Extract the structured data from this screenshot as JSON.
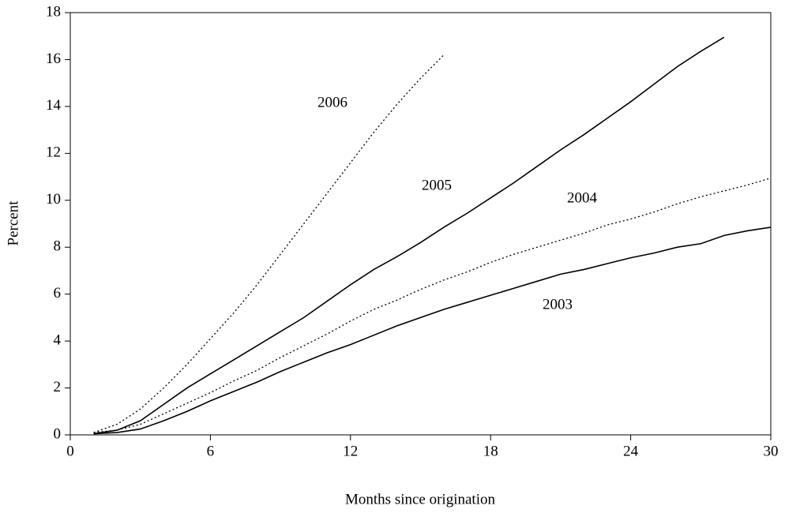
{
  "chart_data": {
    "type": "line",
    "xlabel": "Months since origination",
    "ylabel": "Percent",
    "x": [
      1,
      2,
      3,
      4,
      5,
      6,
      7,
      8,
      9,
      10,
      11,
      12,
      13,
      14,
      15,
      16,
      17,
      18,
      19,
      20,
      21,
      22,
      23,
      24,
      25,
      26,
      27,
      28,
      29,
      30
    ],
    "xlim": [
      0,
      30
    ],
    "xticks": [
      0,
      6,
      12,
      18,
      24,
      30
    ],
    "ylim": [
      0,
      18
    ],
    "yticks": [
      0,
      2,
      4,
      6,
      8,
      10,
      12,
      14,
      16,
      18
    ],
    "grid": false,
    "series": [
      {
        "name": "2003",
        "color": "#000000",
        "dash": "solid",
        "values": [
          0.05,
          0.1,
          0.25,
          0.6,
          1.0,
          1.45,
          1.85,
          2.25,
          2.7,
          3.1,
          3.5,
          3.85,
          4.25,
          4.65,
          5.0,
          5.35,
          5.65,
          5.95,
          6.25,
          6.55,
          6.85,
          7.05,
          7.3,
          7.55,
          7.75,
          8.0,
          8.15,
          8.5,
          8.7,
          8.85
        ]
      },
      {
        "name": "2004",
        "color": "#000000",
        "dash": "dotted",
        "values": [
          0.1,
          0.2,
          0.45,
          0.9,
          1.35,
          1.8,
          2.3,
          2.75,
          3.3,
          3.8,
          4.3,
          4.85,
          5.35,
          5.75,
          6.2,
          6.6,
          6.95,
          7.35,
          7.7,
          8.0,
          8.3,
          8.6,
          8.95,
          9.2,
          9.5,
          9.85,
          10.15,
          10.4,
          10.65,
          10.95
        ]
      },
      {
        "name": "2005",
        "color": "#000000",
        "dash": "solid",
        "values": [
          0.05,
          0.2,
          0.6,
          1.3,
          2.0,
          2.6,
          3.2,
          3.8,
          4.4,
          5.0,
          5.7,
          6.4,
          7.05,
          7.6,
          8.2,
          8.85,
          9.45,
          10.1,
          10.75,
          11.45,
          12.15,
          12.8,
          13.5,
          14.2,
          14.95,
          15.7,
          16.35,
          16.95,
          null,
          null
        ]
      },
      {
        "name": "2006",
        "color": "#000000",
        "dash": "dotted",
        "values": [
          0.1,
          0.45,
          1.1,
          2.0,
          3.0,
          4.1,
          5.2,
          6.4,
          7.7,
          9.0,
          10.3,
          11.6,
          12.9,
          14.1,
          15.2,
          16.2,
          null,
          null,
          null,
          null,
          null,
          null,
          null,
          null,
          null,
          null,
          null,
          null,
          null,
          null
        ]
      }
    ]
  }
}
